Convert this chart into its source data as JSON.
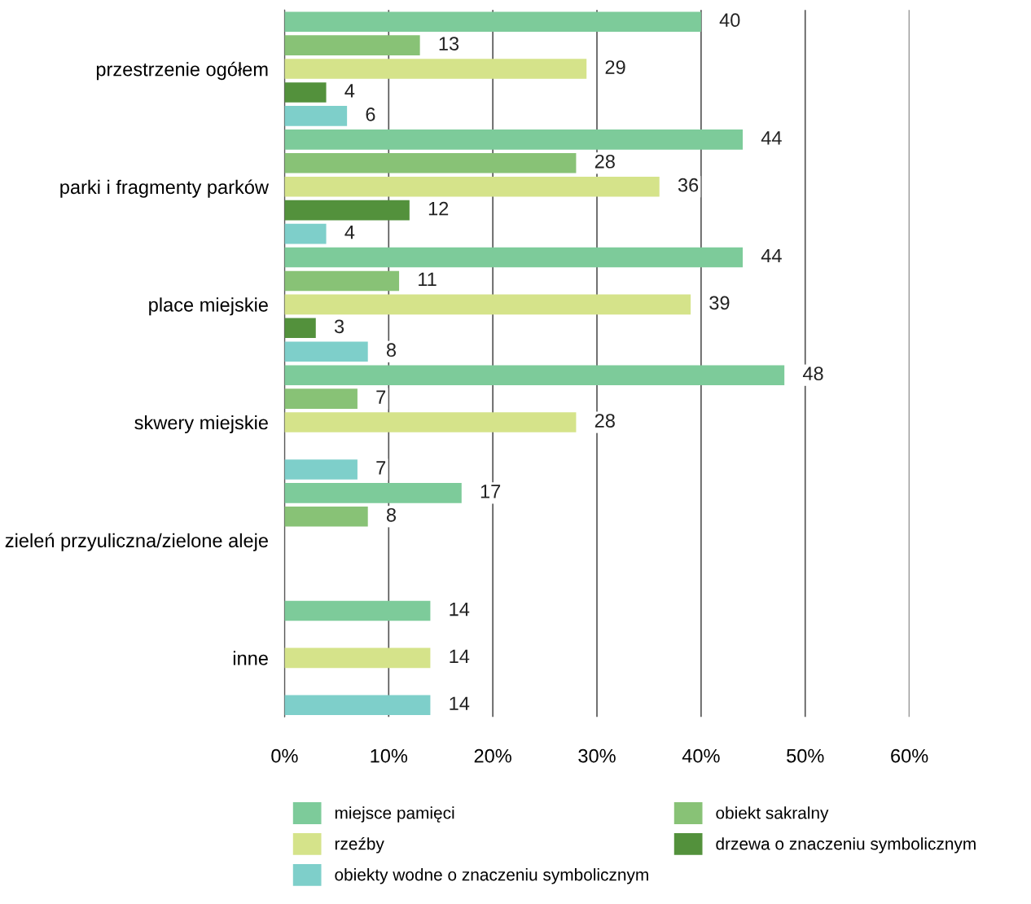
{
  "chart_data": {
    "type": "bar",
    "orientation": "horizontal",
    "categories": [
      "przestrzenie ogółem",
      "parki i fragmenty parków",
      "place miejskie",
      "skwery miejskie",
      "zieleń przyuliczna/zielone aleje",
      "inne"
    ],
    "series": [
      {
        "name": "miejsce pamięci",
        "color": "#7dcb9a",
        "values": [
          40,
          44,
          44,
          48,
          17,
          14
        ]
      },
      {
        "name": "obiekt sakralny",
        "color": "#88c276",
        "values": [
          13,
          28,
          11,
          7,
          8,
          null
        ]
      },
      {
        "name": "rzeźby",
        "color": "#d5e38a",
        "values": [
          29,
          36,
          39,
          28,
          null,
          14
        ]
      },
      {
        "name": "drzewa o znaczeniu symbolicznym",
        "color": "#53913c",
        "values": [
          4,
          12,
          3,
          null,
          null,
          null
        ]
      },
      {
        "name": "obiekty wodne o znaczeniu symbolicznym",
        "color": "#7ecfca",
        "values": [
          6,
          4,
          8,
          7,
          null,
          14
        ]
      }
    ],
    "xlim": [
      0,
      60
    ],
    "xticks": [
      {
        "value": 0,
        "label": "0%"
      },
      {
        "value": 10,
        "label": "10%"
      },
      {
        "value": 20,
        "label": "20%"
      },
      {
        "value": 30,
        "label": "30%"
      },
      {
        "value": 40,
        "label": "40%"
      },
      {
        "value": 50,
        "label": "50%"
      },
      {
        "value": 60,
        "label": "60%"
      }
    ],
    "grid": "x",
    "legend": "bottom",
    "data_labels": true
  }
}
